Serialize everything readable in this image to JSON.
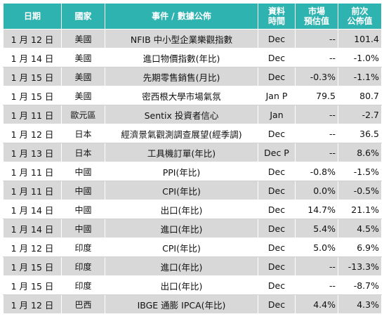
{
  "headers": {
    "date": "日期",
    "country": "國家",
    "event": "事件 / 數據公佈",
    "period": [
      "資料",
      "時間"
    ],
    "forecast": [
      "市場",
      "預估值"
    ],
    "previous": [
      "前次",
      "公佈值"
    ]
  },
  "rows": [
    {
      "date": "1 月 12 日",
      "country": "美國",
      "event": "NFIB 中小型企業樂觀指數",
      "period": "Dec",
      "forecast": "--",
      "previous": "101.4"
    },
    {
      "date": "1 月 14 日",
      "country": "美國",
      "event": "進口物價指數(年比)",
      "period": "Dec",
      "forecast": "--",
      "previous": "-1.0%"
    },
    {
      "date": "1 月 15 日",
      "country": "美國",
      "event": "先期零售銷售(月比)",
      "period": "Dec",
      "forecast": "-0.3%",
      "previous": "-1.1%"
    },
    {
      "date": "1 月 15 日",
      "country": "美國",
      "event": "密西根大學市場氣氛",
      "period": "Jan P",
      "forecast": "79.5",
      "previous": "80.7"
    },
    {
      "date": "1 月 11 日",
      "country": "歐元區",
      "event": "Sentix 投資者信心",
      "period": "Jan",
      "forecast": "--",
      "previous": "-2.7"
    },
    {
      "date": "1 月 12 日",
      "country": "日本",
      "event": "經濟景氣觀測調查展望(經季調)",
      "period": "Dec",
      "forecast": "--",
      "previous": "36.5"
    },
    {
      "date": "1 月 13 日",
      "country": "日本",
      "event": "工具機訂單(年比)",
      "period": "Dec P",
      "forecast": "--",
      "previous": "8.6%"
    },
    {
      "date": "1 月 11 日",
      "country": "中國",
      "event": "PPI(年比)",
      "period": "Dec",
      "forecast": "-0.8%",
      "previous": "-1.5%"
    },
    {
      "date": "1 月 11 日",
      "country": "中國",
      "event": "CPI(年比)",
      "period": "Dec",
      "forecast": "0.0%",
      "previous": "-0.5%"
    },
    {
      "date": "1 月 14 日",
      "country": "中國",
      "event": "出口(年比)",
      "period": "Dec",
      "forecast": "14.7%",
      "previous": "21.1%"
    },
    {
      "date": "1 月 14 日",
      "country": "中國",
      "event": "進口(年比)",
      "period": "Dec",
      "forecast": "5.4%",
      "previous": "4.5%"
    },
    {
      "date": "1 月 12 日",
      "country": "印度",
      "event": "CPI(年比)",
      "period": "Dec",
      "forecast": "5.0%",
      "previous": "6.9%"
    },
    {
      "date": "1 月 15 日",
      "country": "印度",
      "event": "進口(年比)",
      "period": "Dec",
      "forecast": "--",
      "previous": "-13.3%"
    },
    {
      "date": "1 月 15 日",
      "country": "印度",
      "event": "出口(年比)",
      "period": "Dec",
      "forecast": "--",
      "previous": "-8.7%"
    },
    {
      "date": "1 月 12 日",
      "country": "巴西",
      "event": "IBGE 通膨 IPCA(年比)",
      "period": "Dec",
      "forecast": "4.4%",
      "previous": "4.3%"
    }
  ]
}
